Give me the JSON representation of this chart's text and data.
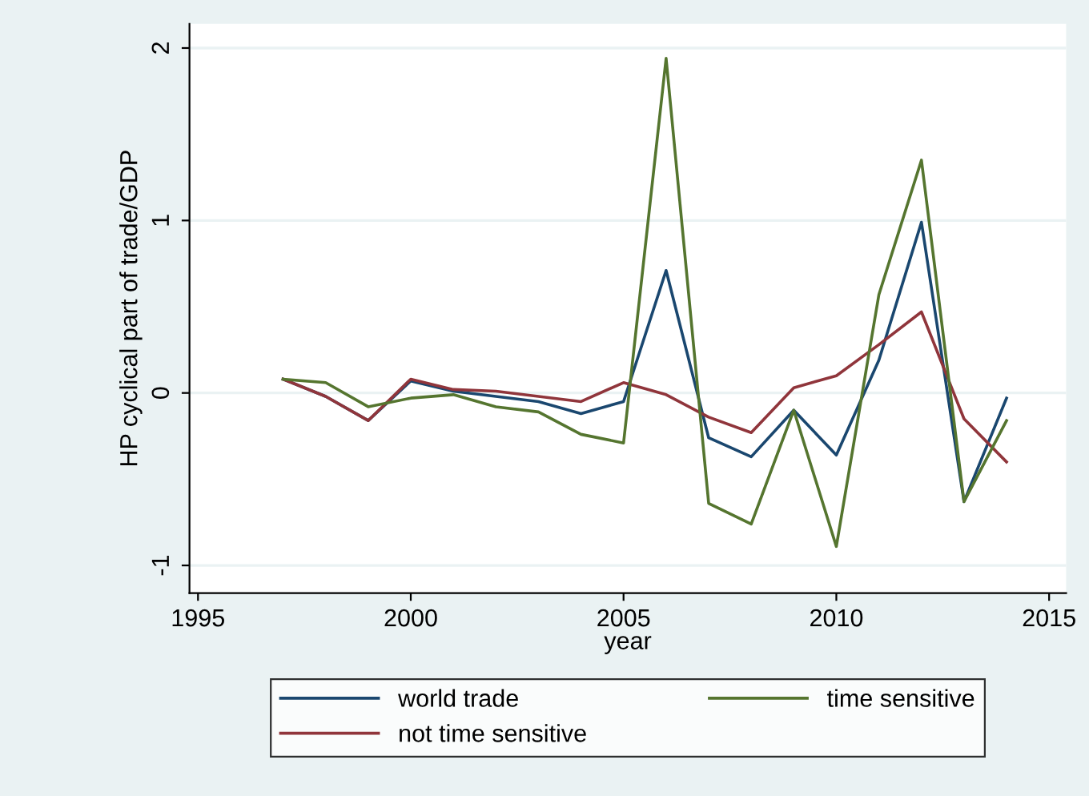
{
  "chart_data": {
    "type": "line",
    "xlabel": "year",
    "ylabel": "HP cyclical part of trade/GDP",
    "x": [
      1997,
      1998,
      1999,
      2000,
      2001,
      2002,
      2003,
      2004,
      2005,
      2006,
      2007,
      2008,
      2009,
      2010,
      2011,
      2012,
      2013,
      2014
    ],
    "series": [
      {
        "name": "world trade",
        "color": "#1a476f",
        "values": [
          0.08,
          -0.02,
          -0.16,
          0.07,
          0.01,
          -0.02,
          -0.05,
          -0.12,
          -0.05,
          0.71,
          -0.26,
          -0.37,
          -0.1,
          -0.36,
          0.19,
          0.99,
          -0.63,
          -0.03
        ]
      },
      {
        "name": "not time sensitive",
        "color": "#90353b",
        "values": [
          0.08,
          -0.02,
          -0.16,
          0.08,
          0.02,
          0.01,
          -0.02,
          -0.05,
          0.06,
          -0.01,
          -0.14,
          -0.23,
          0.03,
          0.1,
          0.28,
          0.47,
          -0.15,
          -0.4
        ]
      },
      {
        "name": "time sensitive",
        "color": "#55752f",
        "values": [
          0.08,
          0.06,
          -0.08,
          -0.03,
          -0.01,
          -0.08,
          -0.11,
          -0.24,
          -0.29,
          1.94,
          -0.64,
          -0.76,
          -0.1,
          -0.89,
          0.57,
          1.35,
          -0.63,
          -0.16
        ]
      }
    ],
    "xlim": [
      1994.8,
      2015.4
    ],
    "ylim": [
      -1.16,
      2.14
    ],
    "xticks": [
      1995,
      2000,
      2005,
      2010,
      2015
    ],
    "yticks": [
      2,
      1,
      0,
      {
        "value": -1,
        "label": "-1"
      }
    ],
    "grid": "y",
    "legend": "bottom",
    "marker": "none",
    "line_style": "solid"
  }
}
